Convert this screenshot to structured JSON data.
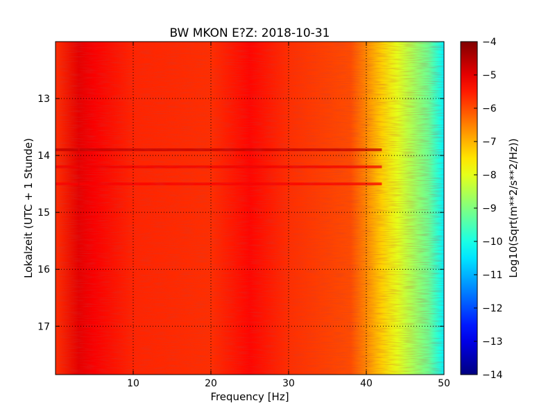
{
  "chart_data": {
    "type": "heatmap",
    "title": "BW MKON E?Z: 2018-10-31",
    "xlabel": "Frequency [Hz]",
    "ylabel": "Lokalzeit (UTC + 1 Stunde)",
    "xlim": [
      0,
      50
    ],
    "ylim": [
      17.85,
      12.0
    ],
    "x_ticks": [
      10,
      20,
      30,
      40,
      50
    ],
    "x_tick_labels": [
      "10",
      "20",
      "30",
      "40",
      "50"
    ],
    "y_ticks": [
      13,
      14,
      15,
      16,
      17
    ],
    "y_tick_labels": [
      "13",
      "14",
      "15",
      "16",
      "17"
    ],
    "grid": true,
    "colorbar": {
      "label": "Log10(Sqrt(m**2/s**2/Hz))",
      "range": [
        -14,
        -4
      ],
      "ticks": [
        -4,
        -5,
        -6,
        -7,
        -8,
        -9,
        -10,
        -11,
        -12,
        -13,
        -14
      ],
      "tick_labels": [
        "−4",
        "−5",
        "−6",
        "−7",
        "−8",
        "−9",
        "−10",
        "−11",
        "−12",
        "−13",
        "−14"
      ],
      "colormap": "jet"
    },
    "spectrum_profile": {
      "frequency_hz": [
        0,
        3,
        5,
        10,
        20,
        25,
        30,
        38,
        40,
        42,
        44,
        46,
        48,
        49.5,
        50
      ],
      "log10_amplitude": [
        -5.7,
        -5.0,
        -5.2,
        -5.6,
        -5.7,
        -5.3,
        -5.7,
        -6.0,
        -6.6,
        -7.3,
        -8.0,
        -8.6,
        -9.2,
        -10.0,
        -10.4
      ]
    },
    "features": [
      {
        "kind": "horizontal_band",
        "time": 13.9,
        "log10_amplitude": -4.6
      },
      {
        "kind": "horizontal_band",
        "time": 14.2,
        "log10_amplitude": -5.1
      },
      {
        "kind": "horizontal_band",
        "time": 14.5,
        "log10_amplitude": -5.2
      },
      {
        "kind": "vertical_line",
        "frequency_hz": 3,
        "log10_amplitude": -5.0
      }
    ]
  }
}
